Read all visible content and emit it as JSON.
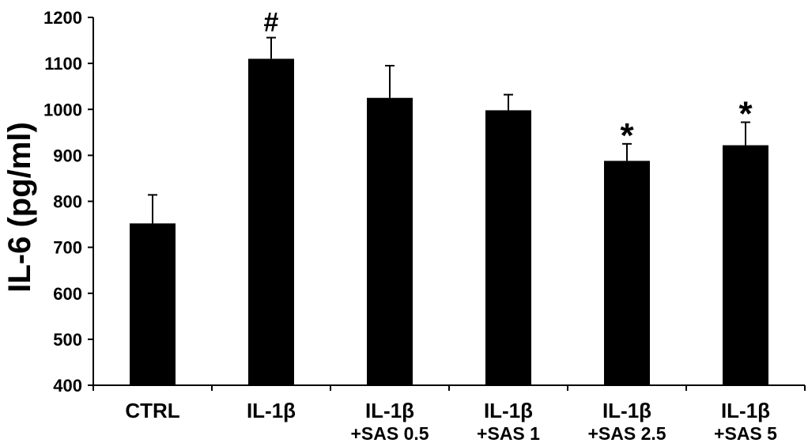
{
  "chart_data": {
    "type": "bar",
    "ylabel": "IL-6 (pg/ml)",
    "xlabel": "",
    "ylim": [
      400,
      1200
    ],
    "yticks": [
      400,
      500,
      600,
      700,
      800,
      900,
      1000,
      1100,
      1200
    ],
    "grid": false,
    "bar_color": "#000000",
    "categories": [
      {
        "line1": "CTRL",
        "line2": ""
      },
      {
        "line1": "IL-1β",
        "line2": ""
      },
      {
        "line1": "IL-1β",
        "line2": "+SAS 0.5"
      },
      {
        "line1": "IL-1β",
        "line2": "+SAS 1"
      },
      {
        "line1": "IL-1β",
        "line2": "+SAS 2.5"
      },
      {
        "line1": "IL-1β",
        "line2": "+SAS 5"
      }
    ],
    "values": [
      752,
      1110,
      1025,
      998,
      888,
      922
    ],
    "errors": [
      62,
      46,
      70,
      34,
      37,
      50
    ],
    "annotations": [
      "",
      "#",
      "",
      "",
      "*",
      "*"
    ]
  }
}
